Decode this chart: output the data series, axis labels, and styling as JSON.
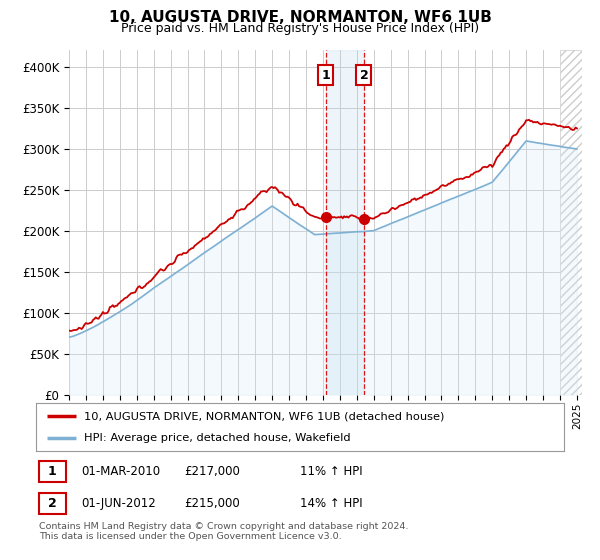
{
  "title": "10, AUGUSTA DRIVE, NORMANTON, WF6 1UB",
  "subtitle": "Price paid vs. HM Land Registry's House Price Index (HPI)",
  "ylim": [
    0,
    420000
  ],
  "yticks": [
    0,
    50000,
    100000,
    150000,
    200000,
    250000,
    300000,
    350000,
    400000
  ],
  "line1_color": "#cc0000",
  "line2_color": "#7eb0d4",
  "line2_fill_color": "#d0e8f5",
  "grid_color": "#cccccc",
  "background_color": "#ffffff",
  "sale1_t": 2010.167,
  "sale2_t": 2012.417,
  "sale1_price": 217000,
  "sale2_price": 215000,
  "sale1_label": "1",
  "sale2_label": "2",
  "legend_line1": "10, AUGUSTA DRIVE, NORMANTON, WF6 1UB (detached house)",
  "legend_line2": "HPI: Average price, detached house, Wakefield",
  "table_data": [
    [
      "1",
      "01-MAR-2010",
      "£217,000",
      "11% ↑ HPI"
    ],
    [
      "2",
      "01-JUN-2012",
      "£215,000",
      "14% ↑ HPI"
    ]
  ],
  "footnote": "Contains HM Land Registry data © Crown copyright and database right 2024.\nThis data is licensed under the Open Government Licence v3.0.",
  "xstart_year": 1995,
  "xend_year": 2025
}
